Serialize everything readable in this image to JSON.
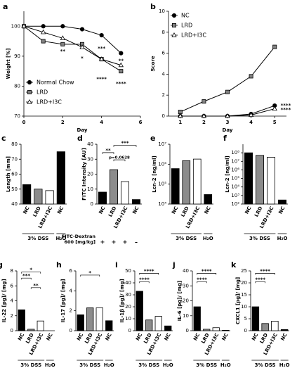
{
  "chart_data": [
    {
      "type": "line",
      "panel": "a",
      "xlabel": "Day",
      "ylabel": "Weight [%]",
      "x": [
        0,
        1,
        2,
        3,
        4,
        5
      ],
      "xlim": [
        0,
        6
      ],
      "xticks": [
        0,
        2,
        4,
        6
      ],
      "ylim": [
        70,
        105
      ],
      "yticks": [
        70,
        80,
        90,
        100
      ],
      "legend": "lower left",
      "series": [
        {
          "name": "Normal Chow",
          "color": "#000000",
          "marker": "circle",
          "values": [
            100,
            100,
            100,
            99,
            97,
            91
          ]
        },
        {
          "name": "LRD",
          "color": "#808080",
          "marker": "square",
          "values": [
            100,
            95,
            94,
            94,
            89,
            85
          ]
        },
        {
          "name": "LRD+I3C",
          "color": "#ffffff",
          "marker": "triangle",
          "values": [
            100,
            98,
            96,
            93,
            89,
            87
          ]
        }
      ],
      "annotations": [
        "**",
        "*",
        "***",
        "****",
        "**",
        "****"
      ]
    },
    {
      "type": "line",
      "panel": "b",
      "xlabel": "Day",
      "ylabel": "Score",
      "x": [
        1,
        2,
        3,
        4,
        5
      ],
      "xlim": [
        0.5,
        5.5
      ],
      "xticks": [
        1,
        2,
        3,
        4,
        5
      ],
      "ylim": [
        0,
        10
      ],
      "yticks": [
        0,
        2,
        4,
        6,
        8,
        10
      ],
      "legend": "upper left",
      "series": [
        {
          "name": "NC",
          "color": "#000000",
          "marker": "circle",
          "values": [
            0,
            0,
            0,
            0.2,
            1.0
          ]
        },
        {
          "name": "LRD",
          "color": "#808080",
          "marker": "square",
          "values": [
            0.4,
            1.4,
            2.3,
            3.8,
            6.6
          ]
        },
        {
          "name": "LRD+I3C",
          "color": "#ffffff",
          "marker": "triangle",
          "values": [
            0,
            0,
            0,
            0.1,
            0.7
          ]
        }
      ],
      "annotations": [
        "****",
        "****"
      ]
    },
    {
      "type": "bar",
      "panel": "c",
      "ylabel": "Length [mm]",
      "categories": [
        "NC",
        "LRD",
        "LRD+I3C",
        "NC"
      ],
      "values": [
        53,
        50,
        49,
        75
      ],
      "colors": [
        "#000000",
        "#8c8c8c",
        "#ffffff",
        "#000000"
      ],
      "ylim": [
        40,
        80
      ],
      "yticks": [
        40,
        50,
        60,
        70,
        80
      ],
      "group_labels": [
        "3% DSS",
        "H₂O"
      ],
      "annotations": []
    },
    {
      "type": "bar",
      "panel": "d",
      "ylabel": "FITC Intensity [AU]",
      "categories": [
        "NC",
        "LRD",
        "LRD+I3C",
        "NC"
      ],
      "values": [
        8,
        23,
        15,
        3
      ],
      "colors": [
        "#000000",
        "#8c8c8c",
        "#ffffff",
        "#000000"
      ],
      "ylim": [
        0,
        40
      ],
      "yticks": [
        0,
        10,
        20,
        30,
        40
      ],
      "row_label": [
        "FITC-Dextran",
        "600 [mg/kg]"
      ],
      "row_values": [
        "+",
        "+",
        "+",
        "–"
      ],
      "annotations": [
        "**",
        "***",
        "p=0.0628"
      ]
    },
    {
      "type": "bar",
      "panel": "e",
      "ylabel": "Lcn-2 [ng/ml]",
      "categories": [
        "NC",
        "LRD",
        "LRD+I3C",
        "NC"
      ],
      "values": [
        600000,
        1500000,
        1800000,
        30000
      ],
      "colors": [
        "#000000",
        "#8c8c8c",
        "#ffffff",
        "#000000"
      ],
      "log": true,
      "ylim": [
        10000,
        10000000
      ],
      "yticks": [
        {
          "value": 10000,
          "label": "10⁴"
        },
        {
          "value": 100000,
          "label": "10⁵"
        },
        {
          "value": 1000000,
          "label": "10⁶"
        },
        {
          "value": 10000000,
          "label": "10⁷"
        }
      ],
      "group_labels": [
        "3% DSS",
        "H₂O"
      ],
      "annotations": []
    },
    {
      "type": "bar",
      "panel": "f",
      "ylabel": "Lcn-2 [ng/ml]",
      "categories": [
        "NC",
        "LRD",
        "LRD+I3C",
        "NC"
      ],
      "values": [
        100000000,
        50000000,
        30000000,
        300
      ],
      "colors": [
        "#000000",
        "#8c8c8c",
        "#ffffff",
        "#000000"
      ],
      "log": true,
      "ylim": [
        100,
        1000000000
      ],
      "yticks": [
        {
          "value": 100,
          "label": "10²"
        },
        {
          "value": 1000,
          "label": "10³"
        },
        {
          "value": 10000,
          "label": "10⁴"
        },
        {
          "value": 100000,
          "label": "10⁵"
        },
        {
          "value": 1000000,
          "label": "10⁶"
        },
        {
          "value": 10000000,
          "label": "10⁷"
        },
        {
          "value": 100000000,
          "label": "10⁸"
        }
      ],
      "group_labels": [
        "3% DSS",
        "H₂O"
      ],
      "annotations": []
    },
    {
      "type": "bar",
      "panel": "g",
      "ylabel": "IL-22 [pg]/ [mg]",
      "categories": [
        "NC",
        "LRD",
        "LRD+I3C",
        "NC"
      ],
      "values": [
        2.8,
        0.2,
        1.3,
        0
      ],
      "colors": [
        "#000000",
        "#8c8c8c",
        "#ffffff",
        "#000000"
      ],
      "ylim": [
        0,
        8
      ],
      "yticks": [
        0,
        2,
        4,
        6,
        8
      ],
      "group_labels": [
        "3% DSS",
        "H₂O"
      ],
      "annotations": [
        "***",
        "*",
        "**"
      ]
    },
    {
      "type": "bar",
      "panel": "h",
      "ylabel": "IL-17 [pg]/ [mg]",
      "categories": [
        "NC",
        "LRD",
        "LRD+I3C",
        "NC"
      ],
      "values": [
        1.6,
        2.3,
        2.3,
        1.0
      ],
      "colors": [
        "#000000",
        "#8c8c8c",
        "#ffffff",
        "#000000"
      ],
      "ylim": [
        0,
        6
      ],
      "yticks": [
        0,
        2,
        4,
        6
      ],
      "group_labels": [
        "3% DSS",
        "H₂O"
      ],
      "annotations": [
        "*"
      ]
    },
    {
      "type": "bar",
      "panel": "i",
      "ylabel": "IL-1β [pg]/ [mg]",
      "categories": [
        "NC",
        "LRD",
        "LRD+I3C",
        "NC"
      ],
      "values": [
        33,
        9,
        12,
        4
      ],
      "colors": [
        "#000000",
        "#8c8c8c",
        "#ffffff",
        "#000000"
      ],
      "ylim": [
        0,
        50
      ],
      "yticks": [
        0,
        10,
        20,
        30,
        40,
        50
      ],
      "group_labels": [
        "3% DSS",
        "H₂O"
      ],
      "annotations": [
        "****",
        "****"
      ]
    },
    {
      "type": "bar",
      "panel": "j",
      "ylabel": "IL-6 [pg]/ [mg]",
      "categories": [
        "NC",
        "LRD",
        "LRD+I3C",
        "NC"
      ],
      "values": [
        16,
        1,
        2,
        0.3
      ],
      "colors": [
        "#000000",
        "#8c8c8c",
        "#ffffff",
        "#000000"
      ],
      "ylim": [
        0,
        40
      ],
      "yticks": [
        0,
        10,
        20,
        30,
        40
      ],
      "group_labels": [
        "3% DSS",
        "H₂O"
      ],
      "annotations": [
        "****",
        "****"
      ]
    },
    {
      "type": "bar",
      "panel": "k",
      "ylabel": "CXCL1 [pg]/ [mg]",
      "categories": [
        "NC",
        "LRD",
        "LRD+I3C",
        "NC"
      ],
      "values": [
        10,
        3,
        4,
        0.5
      ],
      "colors": [
        "#000000",
        "#8c8c8c",
        "#ffffff",
        "#000000"
      ],
      "ylim": [
        0,
        25
      ],
      "yticks": [
        0,
        5,
        10,
        15,
        20,
        25
      ],
      "group_labels": [
        "3% DSS",
        "H₂O"
      ],
      "annotations": [
        "****",
        "****"
      ]
    }
  ]
}
